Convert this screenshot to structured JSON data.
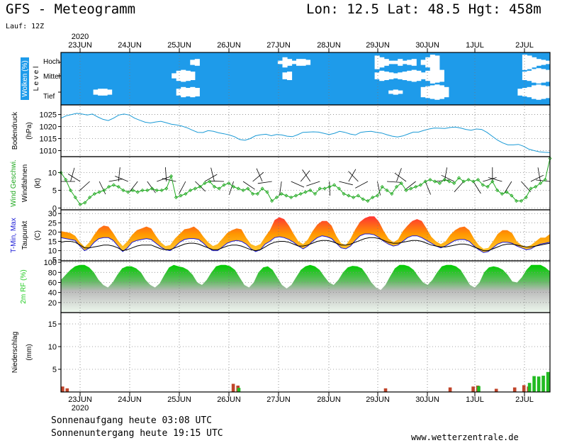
{
  "header": {
    "title": "GFS - Meteogramm",
    "location": "Lon: 12.5  Lat: 48.5  Hgt: 458m",
    "run": "Lauf: 12Z",
    "year_top": "2020",
    "year_bottom": "2020"
  },
  "footer": {
    "sunrise": "Sonnenaufgang heute 03:08 UTC",
    "sunset": "Sonnenuntergang heute 19:15 UTC",
    "source": "www.wetterzentrale.de"
  },
  "colors": {
    "cloud_clear": "#1e9bea",
    "cloud": "#ffffff",
    "pressure": "#1a9ad6",
    "wind": "#22aa22",
    "tmin": "#1a1ad6",
    "tmax": "#ff2a2a",
    "rh": "#22cc22",
    "precip_rain": "#c0442a",
    "precip_green": "#22bb22"
  },
  "chart_data": [
    {
      "type": "heatmap",
      "panel": "clouds",
      "ylabel": "Wolken (%)",
      "ylabel2": "L e v e l",
      "levels": [
        "Hoch",
        "Mittel",
        "Tief"
      ],
      "x": [
        "23JUN",
        "24JUN",
        "25JUN",
        "26JUN",
        "27JUN",
        "28JUN",
        "29JUN",
        "30JUN",
        "1JUL",
        "2JUL"
      ],
      "cover_high": [
        0,
        0,
        0,
        0,
        0,
        0,
        0,
        0,
        0,
        0,
        0,
        0,
        0,
        0,
        0,
        0,
        0,
        0,
        0,
        0,
        0,
        0,
        0,
        0,
        0,
        0,
        0,
        0,
        30,
        40,
        0,
        0,
        0,
        0,
        0,
        0,
        0,
        0,
        0,
        0,
        0,
        0,
        0,
        0,
        0,
        0,
        0,
        20,
        60,
        40,
        20,
        40,
        40,
        30,
        0,
        0,
        0,
        0,
        0,
        0,
        0,
        0,
        0,
        0,
        0,
        0,
        0,
        0,
        80,
        60,
        40,
        20,
        20,
        40,
        20,
        30,
        40,
        0,
        30,
        60,
        90,
        80,
        0,
        0,
        0,
        0,
        0,
        0,
        0,
        0,
        0,
        0,
        0,
        0,
        0,
        0,
        0,
        0,
        0,
        0,
        90,
        80,
        60,
        40,
        30,
        20
      ],
      "cover_mid": [
        0,
        0,
        0,
        0,
        0,
        0,
        0,
        0,
        0,
        0,
        0,
        0,
        0,
        0,
        0,
        0,
        0,
        0,
        0,
        0,
        0,
        0,
        0,
        0,
        30,
        60,
        70,
        60,
        50,
        0,
        0,
        0,
        0,
        0,
        0,
        0,
        0,
        0,
        0,
        0,
        0,
        0,
        0,
        0,
        0,
        0,
        0,
        0,
        40,
        50,
        0,
        0,
        0,
        0,
        0,
        0,
        0,
        0,
        0,
        0,
        0,
        0,
        0,
        0,
        0,
        0,
        0,
        0,
        40,
        60,
        50,
        40,
        30,
        40,
        50,
        60,
        70,
        60,
        40,
        60,
        90,
        80,
        70,
        0,
        0,
        0,
        0,
        0,
        0,
        0,
        0,
        0,
        0,
        0,
        0,
        0,
        0,
        0,
        0,
        0,
        50,
        60,
        80,
        90,
        80,
        70
      ],
      "cover_low": [
        0,
        0,
        0,
        0,
        0,
        0,
        0,
        30,
        40,
        40,
        30,
        0,
        0,
        0,
        0,
        0,
        0,
        0,
        0,
        0,
        0,
        0,
        0,
        0,
        0,
        40,
        60,
        50,
        60,
        50,
        0,
        0,
        0,
        0,
        0,
        0,
        0,
        0,
        0,
        0,
        0,
        0,
        0,
        0,
        0,
        0,
        0,
        0,
        0,
        0,
        0,
        0,
        0,
        0,
        0,
        0,
        0,
        0,
        0,
        0,
        0,
        0,
        0,
        0,
        0,
        0,
        0,
        0,
        0,
        0,
        0,
        20,
        30,
        20,
        0,
        0,
        0,
        0,
        60,
        70,
        80,
        90,
        80,
        60,
        0,
        0,
        0,
        0,
        0,
        0,
        0,
        0,
        0,
        0,
        0,
        0,
        0,
        0,
        0,
        40,
        50,
        60,
        80,
        90,
        80,
        70
      ]
    },
    {
      "type": "line",
      "panel": "pressure",
      "ylabel": "Bodendruck",
      "ylabel2": "(hPa)",
      "ylim": [
        1007.5,
        1029.0
      ],
      "yticks": [
        1010,
        1015,
        1020,
        1025
      ],
      "x_step_hours": 3,
      "values": [
        1023.5,
        1024.5,
        1025.0,
        1025.5,
        1025.2,
        1024.8,
        1025.2,
        1024.0,
        1023.0,
        1022.5,
        1023.5,
        1024.8,
        1025.2,
        1024.8,
        1023.5,
        1022.6,
        1021.8,
        1021.5,
        1021.9,
        1022.2,
        1021.6,
        1021.0,
        1020.7,
        1020.2,
        1019.5,
        1018.5,
        1017.6,
        1017.5,
        1018.3,
        1018.0,
        1017.4,
        1017.0,
        1016.5,
        1015.8,
        1014.6,
        1014.3,
        1015.0,
        1016.2,
        1016.6,
        1016.8,
        1016.2,
        1016.7,
        1016.5,
        1016.0,
        1015.8,
        1016.6,
        1017.6,
        1017.7,
        1017.8,
        1017.7,
        1017.2,
        1016.7,
        1017.2,
        1018.0,
        1017.6,
        1016.9,
        1016.5,
        1017.6,
        1017.9,
        1018.0,
        1017.6,
        1017.3,
        1016.6,
        1016.0,
        1015.7,
        1016.1,
        1016.9,
        1017.7,
        1017.7,
        1018.4,
        1019.0,
        1019.4,
        1019.3,
        1019.2,
        1019.6,
        1019.8,
        1019.4,
        1018.8,
        1018.5,
        1019.0,
        1018.8,
        1017.6,
        1016.0,
        1014.4,
        1013.2,
        1012.4,
        1012.4,
        1012.6,
        1011.8,
        1010.6,
        1010.0,
        1009.5,
        1009.3,
        1009.2
      ]
    },
    {
      "type": "line",
      "panel": "wind",
      "ylabel": "Wind Geschwi.",
      "ylabel_windbarbs": "Windfahnen",
      "ylabel2": "(kt)",
      "ylim": [
        -0.5,
        14.5
      ],
      "yticks": [
        0,
        5,
        10
      ],
      "x_step_hours": 3,
      "values": [
        10,
        8,
        5,
        3,
        1,
        1.5,
        3,
        4,
        4.5,
        5,
        6,
        6.5,
        6,
        5,
        4.5,
        5,
        4.5,
        5,
        5,
        5.5,
        5,
        5,
        5.5,
        9,
        3,
        3.5,
        4,
        5,
        5.5,
        6,
        7,
        7.5,
        6,
        5.5,
        6.5,
        7,
        6,
        5.5,
        5,
        5.5,
        4,
        4,
        5.5,
        4.5,
        2,
        3,
        4,
        3.5,
        3,
        3.5,
        4,
        4.5,
        5,
        4,
        5.5,
        5.5,
        6,
        6.5,
        5.5,
        4,
        3.5,
        3,
        3.5,
        2.5,
        2,
        3,
        3.5,
        6,
        5,
        4,
        6,
        7,
        5,
        5.5,
        6,
        6.5,
        7.5,
        8,
        7.5,
        7,
        8,
        7.5,
        7,
        8.5,
        7.5,
        8,
        7.5,
        8,
        6.5,
        6,
        7.5,
        5,
        4,
        4.5,
        3.5,
        2,
        2,
        3,
        5.5,
        6,
        7,
        8,
        14
      ]
    },
    {
      "type": "area",
      "panel": "temperature",
      "ylabel": "T-Min, Max",
      "ylabel2": "Taupunkt",
      "ylabel3": "(C)",
      "ylim": [
        4.5,
        32.0
      ],
      "yticks": [
        5,
        10,
        15,
        20,
        25,
        30
      ],
      "x_step_hours": 3,
      "tmax": [
        20.5,
        20.0,
        19.5,
        18.0,
        14.5,
        12.0,
        14.5,
        18.5,
        22.0,
        23.5,
        23.0,
        19.5,
        15.5,
        12.5,
        15.0,
        18.5,
        21.0,
        22.0,
        23.0,
        22.0,
        18.0,
        14.5,
        12.5,
        13.0,
        16.5,
        19.0,
        21.5,
        22.0,
        23.0,
        21.0,
        17.5,
        14.5,
        12.5,
        13.5,
        16.5,
        19.5,
        21.0,
        22.0,
        21.5,
        17.0,
        13.5,
        12.5,
        13.5,
        17.5,
        21.0,
        26.5,
        28.0,
        27.0,
        23.5,
        19.0,
        15.0,
        13.5,
        16.0,
        20.5,
        24.0,
        26.0,
        26.0,
        23.5,
        18.0,
        14.0,
        13.0,
        16.5,
        21.5,
        25.5,
        27.5,
        28.5,
        28.5,
        25.5,
        20.5,
        16.5,
        14.5,
        16.0,
        20.5,
        23.5,
        26.0,
        27.0,
        26.0,
        22.0,
        17.5,
        15.0,
        13.5,
        15.0,
        18.5,
        21.0,
        22.5,
        23.0,
        21.0,
        16.5,
        13.0,
        11.0,
        11.5,
        15.0,
        19.0,
        21.0,
        21.0,
        19.5,
        15.0,
        13.0,
        12.0,
        13.0,
        15.0,
        17.0,
        17.0,
        19.0
      ],
      "tmin": [
        17.0,
        16.5,
        16.0,
        15.5,
        12.5,
        10.0,
        11.5,
        14.5,
        16.5,
        17.0,
        17.0,
        15.5,
        12.5,
        9.5,
        11.5,
        14.5,
        15.5,
        16.0,
        16.5,
        16.0,
        14.0,
        12.0,
        10.5,
        10.0,
        12.0,
        14.5,
        16.0,
        16.5,
        16.5,
        16.0,
        14.0,
        11.5,
        10.0,
        10.0,
        12.0,
        14.0,
        15.0,
        15.5,
        15.0,
        13.5,
        11.0,
        9.5,
        10.5,
        13.5,
        15.0,
        17.0,
        17.5,
        17.0,
        16.0,
        14.5,
        12.5,
        11.0,
        12.5,
        15.0,
        17.0,
        18.0,
        17.5,
        16.5,
        14.0,
        11.5,
        11.0,
        12.5,
        15.5,
        18.0,
        19.0,
        19.0,
        18.5,
        17.0,
        15.0,
        13.5,
        12.5,
        13.0,
        15.0,
        17.0,
        18.0,
        18.0,
        17.0,
        15.5,
        14.0,
        12.5,
        11.5,
        12.5,
        14.0,
        15.5,
        16.0,
        16.0,
        15.0,
        12.5,
        10.5,
        9.0,
        9.5,
        11.5,
        13.5,
        14.5,
        14.5,
        14.0,
        12.5,
        11.5,
        10.5,
        11.0,
        12.5,
        13.5,
        14.0,
        14.5
      ],
      "dewpoint": [
        14.5,
        15.0,
        15.0,
        14.5,
        13.0,
        11.5,
        11.5,
        12.0,
        12.5,
        13.0,
        13.0,
        12.5,
        11.5,
        10.0,
        10.5,
        11.5,
        12.5,
        13.0,
        13.0,
        13.0,
        12.0,
        11.0,
        10.5,
        10.5,
        11.5,
        12.5,
        13.5,
        14.0,
        14.0,
        13.5,
        12.5,
        11.5,
        10.5,
        10.5,
        11.5,
        12.5,
        13.0,
        13.0,
        12.5,
        11.5,
        10.5,
        10.0,
        10.5,
        12.0,
        13.5,
        14.5,
        15.0,
        15.0,
        14.5,
        13.5,
        12.5,
        12.5,
        13.0,
        14.0,
        15.0,
        15.5,
        15.5,
        15.0,
        14.0,
        13.0,
        13.0,
        13.5,
        14.5,
        15.5,
        16.5,
        17.0,
        17.0,
        16.5,
        15.5,
        14.5,
        14.0,
        14.0,
        14.5,
        15.0,
        15.5,
        15.5,
        15.0,
        14.0,
        13.0,
        12.5,
        12.0,
        12.0,
        12.5,
        13.0,
        13.5,
        13.5,
        13.0,
        12.0,
        11.0,
        10.0,
        10.0,
        11.0,
        12.0,
        13.0,
        13.5,
        13.5,
        13.0,
        12.5,
        12.0,
        12.0,
        12.5,
        13.0,
        13.5,
        14.0
      ]
    },
    {
      "type": "area",
      "panel": "humidity",
      "ylabel": "2m RF (%)",
      "ylim": [
        0,
        103
      ],
      "yticks": [
        20,
        40,
        60,
        80,
        100
      ],
      "x_step_hours": 3,
      "values": [
        65,
        75,
        85,
        92,
        95,
        95,
        90,
        80,
        65,
        55,
        50,
        60,
        75,
        88,
        92,
        92,
        88,
        80,
        65,
        55,
        50,
        58,
        75,
        90,
        95,
        92,
        90,
        85,
        75,
        60,
        55,
        65,
        80,
        92,
        95,
        95,
        92,
        85,
        70,
        55,
        50,
        60,
        80,
        90,
        92,
        85,
        70,
        55,
        48,
        55,
        70,
        85,
        92,
        95,
        92,
        85,
        72,
        60,
        55,
        65,
        80,
        90,
        93,
        92,
        88,
        75,
        60,
        50,
        45,
        55,
        72,
        88,
        95,
        95,
        92,
        85,
        72,
        60,
        55,
        65,
        80,
        92,
        95,
        95,
        92,
        85,
        70,
        55,
        50,
        60,
        80,
        90,
        92,
        90,
        85,
        75,
        62,
        60,
        70,
        85,
        95,
        95,
        95,
        90,
        82
      ]
    },
    {
      "type": "bar",
      "panel": "precipitation",
      "ylabel": "Niederschlag",
      "ylabel2": "(mm)",
      "ylim": [
        0,
        17.5
      ],
      "yticks": [
        5,
        10,
        15
      ],
      "x_step_hours": 3,
      "rain": [
        1.2,
        0.8,
        0,
        0,
        0,
        0,
        0,
        0,
        0,
        0,
        0,
        0,
        0,
        0,
        0,
        0,
        0,
        0,
        0,
        0,
        0,
        0,
        0,
        0,
        0,
        0,
        0,
        0,
        0,
        0,
        0,
        0,
        0,
        0,
        0,
        0,
        0,
        1.8,
        1.4,
        0,
        0,
        0,
        0,
        0,
        0,
        0,
        0,
        0,
        0,
        0,
        0,
        0,
        0,
        0,
        0,
        0,
        0,
        0,
        0,
        0,
        0,
        0,
        0,
        0,
        0,
        0,
        0,
        0,
        0,
        0,
        0.8,
        0,
        0,
        0,
        0,
        0,
        0,
        0,
        0,
        0,
        0,
        0,
        0,
        0,
        1.0,
        0,
        0,
        0,
        0,
        1.2,
        1.4,
        0,
        0,
        0,
        0.7,
        0,
        0,
        0,
        1.0,
        0,
        1.5,
        1.2,
        0,
        0,
        0,
        0
      ],
      "green": [
        0,
        0,
        0,
        0,
        0,
        0,
        0,
        0,
        0,
        0,
        0,
        0,
        0,
        0,
        0,
        0,
        0,
        0,
        0,
        0,
        0,
        0,
        0,
        0,
        0,
        0,
        0,
        0,
        0,
        0,
        0,
        0,
        0,
        0,
        0,
        0,
        0,
        0,
        0.9,
        0,
        0,
        0,
        0,
        0,
        0,
        0,
        0,
        0,
        0,
        0,
        0,
        0,
        0,
        0,
        0,
        0,
        0,
        0,
        0,
        0,
        0,
        0,
        0,
        0,
        0,
        0,
        0,
        0,
        0,
        0,
        0,
        0,
        0,
        0,
        0,
        0,
        0,
        0,
        0,
        0,
        0,
        0,
        0,
        0,
        0,
        0,
        0,
        0,
        0,
        0,
        1.3,
        0,
        0,
        0,
        0,
        0,
        0,
        0,
        0,
        0,
        0,
        2.0,
        3.5,
        3.4,
        3.6,
        4.4
      ]
    }
  ],
  "x_axis": {
    "ticks": [
      "23JUN",
      "24JUN",
      "25JUN",
      "26JUN",
      "27JUN",
      "28JUN",
      "29JUN",
      "30JUN",
      "1JUL",
      "2JUL"
    ]
  }
}
